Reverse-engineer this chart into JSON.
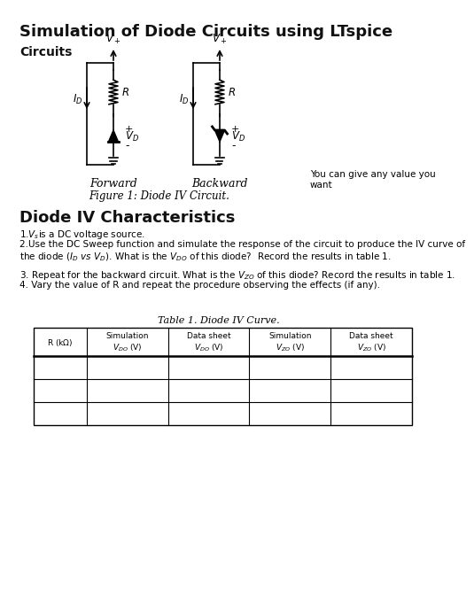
{
  "title": "Simulation of Diode Circuits using LTspice",
  "section1": "Circuits",
  "fig_caption": "Figure 1: Diode IV Circuit.",
  "annotation": "You can give any value you\nwant",
  "section2": "Diode IV Characteristics",
  "bullet1_pre": "1.",
  "bullet1_italic": "V₀",
  "bullet1_post": "is a DC voltage source.",
  "bullet2a": "2.Use the DC Sweep function and simulate the response of the circuit to produce the IV curve of",
  "bullet2b": "the diode (Iᴅ vs Vᴅ). What is the Vᴅ₀ of this diode?  Record the results in table 1.",
  "bullet3": "3. Repeat for the backward circuit. What is the V₀₀ of this diode? Record the results in table 1.",
  "bullet4": "4. Vary the value of R and repeat the procedure observing the effects (if any).",
  "table_title": "Table 1. Diode IV Curve.",
  "bg_color": "#ffffff",
  "text_color": "#000000"
}
